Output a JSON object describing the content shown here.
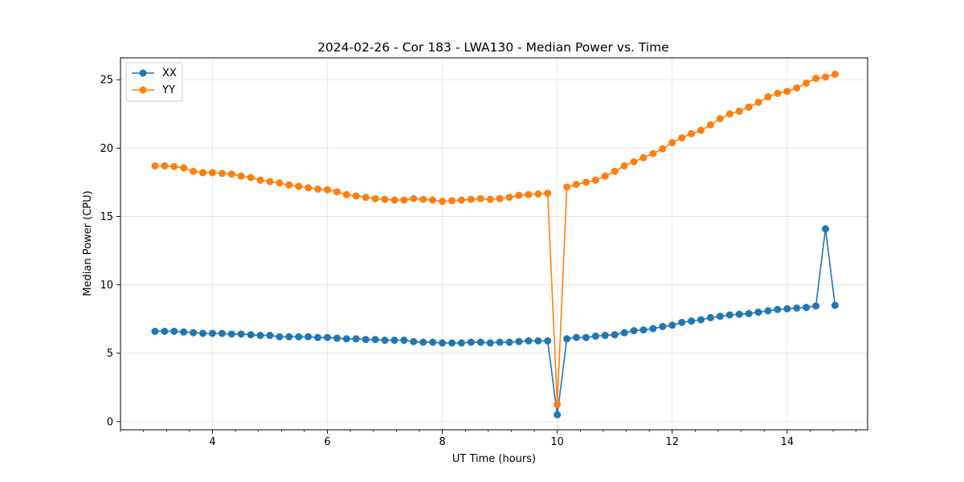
{
  "chart_data": {
    "type": "line",
    "title": "2024-02-26 - Cor 183 - LWA130 - Median Power vs. Time",
    "xlabel": "UT Time (hours)",
    "ylabel": "Median Power (CPU)",
    "xlim": [
      2.4,
      15.4
    ],
    "ylim": [
      -0.6,
      26.6
    ],
    "xticks": [
      4,
      6,
      8,
      10,
      12,
      14
    ],
    "xtick_labels": [
      "4",
      "6",
      "8",
      "10",
      "12",
      "14"
    ],
    "yticks": [
      0,
      5,
      10,
      15,
      20,
      25
    ],
    "ytick_labels": [
      "0",
      "5",
      "10",
      "15",
      "20",
      "25"
    ],
    "grid": true,
    "legend_position": "top-left",
    "x": [
      3.0,
      3.167,
      3.333,
      3.5,
      3.667,
      3.833,
      4.0,
      4.167,
      4.333,
      4.5,
      4.667,
      4.833,
      5.0,
      5.167,
      5.333,
      5.5,
      5.667,
      5.833,
      6.0,
      6.167,
      6.333,
      6.5,
      6.667,
      6.833,
      7.0,
      7.167,
      7.333,
      7.5,
      7.667,
      7.833,
      8.0,
      8.167,
      8.333,
      8.5,
      8.667,
      8.833,
      9.0,
      9.167,
      9.333,
      9.5,
      9.667,
      9.833,
      10.0,
      10.167,
      10.333,
      10.5,
      10.667,
      10.833,
      11.0,
      11.167,
      11.333,
      11.5,
      11.667,
      11.833,
      12.0,
      12.167,
      12.333,
      12.5,
      12.667,
      12.833,
      13.0,
      13.167,
      13.333,
      13.5,
      13.667,
      13.833,
      14.0,
      14.167,
      14.333,
      14.5,
      14.667,
      14.833
    ],
    "series": [
      {
        "name": "XX",
        "color": "#1f77b4",
        "values": [
          6.6,
          6.6,
          6.6,
          6.55,
          6.5,
          6.45,
          6.45,
          6.45,
          6.4,
          6.4,
          6.35,
          6.3,
          6.3,
          6.2,
          6.2,
          6.2,
          6.2,
          6.15,
          6.15,
          6.1,
          6.05,
          6.05,
          6.0,
          6.0,
          5.95,
          5.95,
          5.95,
          5.85,
          5.8,
          5.8,
          5.75,
          5.75,
          5.75,
          5.8,
          5.8,
          5.75,
          5.8,
          5.8,
          5.85,
          5.9,
          5.9,
          5.9,
          0.5,
          6.05,
          6.15,
          6.15,
          6.25,
          6.3,
          6.35,
          6.5,
          6.65,
          6.7,
          6.8,
          6.95,
          7.05,
          7.25,
          7.35,
          7.45,
          7.6,
          7.7,
          7.8,
          7.85,
          7.9,
          8.0,
          8.1,
          8.2,
          8.25,
          8.3,
          8.35,
          8.45,
          14.1,
          8.5
        ]
      },
      {
        "name": "YY",
        "color": "#ff7f0e",
        "values": [
          18.7,
          18.7,
          18.65,
          18.55,
          18.3,
          18.2,
          18.2,
          18.15,
          18.1,
          17.95,
          17.85,
          17.65,
          17.55,
          17.45,
          17.3,
          17.2,
          17.1,
          17.0,
          16.95,
          16.8,
          16.6,
          16.5,
          16.4,
          16.3,
          16.25,
          16.2,
          16.2,
          16.3,
          16.25,
          16.2,
          16.1,
          16.15,
          16.2,
          16.25,
          16.3,
          16.25,
          16.3,
          16.4,
          16.55,
          16.6,
          16.65,
          16.7,
          1.25,
          17.15,
          17.35,
          17.5,
          17.65,
          17.95,
          18.3,
          18.7,
          19.0,
          19.3,
          19.6,
          19.95,
          20.4,
          20.75,
          21.05,
          21.3,
          21.7,
          22.15,
          22.5,
          22.7,
          23.0,
          23.35,
          23.75,
          24.0,
          24.15,
          24.4,
          24.75,
          25.1,
          25.2,
          25.4
        ]
      }
    ]
  }
}
